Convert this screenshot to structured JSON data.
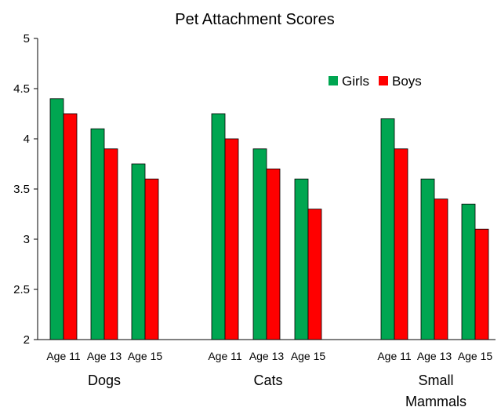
{
  "chart_data": {
    "type": "bar",
    "title": "Pet Attachment Scores",
    "xlabel": "",
    "ylabel": "",
    "ylim": [
      2,
      5
    ],
    "yticks": [
      "2",
      "2.5",
      "3",
      "3.5",
      "4",
      "4.5",
      "5"
    ],
    "grid": false,
    "legend_position": "top-right",
    "groups": [
      {
        "name": "Dogs",
        "label_lines": [
          "Dogs"
        ],
        "categories": [
          "Age 11",
          "Age 13",
          "Age 15"
        ]
      },
      {
        "name": "Cats",
        "label_lines": [
          "Cats"
        ],
        "categories": [
          "Age 11",
          "Age 13",
          "Age 15"
        ]
      },
      {
        "name": "Small Mammals",
        "label_lines": [
          "Small",
          "Mammals"
        ],
        "categories": [
          "Age 11",
          "Age 13",
          "Age 15"
        ]
      }
    ],
    "series": [
      {
        "name": "Girls",
        "color": "#00a651",
        "values": [
          [
            4.4,
            4.1,
            3.75
          ],
          [
            4.25,
            3.9,
            3.6
          ],
          [
            4.2,
            3.6,
            3.35
          ]
        ]
      },
      {
        "name": "Boys",
        "color": "#ff0000",
        "values": [
          [
            4.25,
            3.9,
            3.6
          ],
          [
            4.0,
            3.7,
            3.3
          ],
          [
            3.9,
            3.4,
            3.1
          ]
        ]
      }
    ]
  }
}
